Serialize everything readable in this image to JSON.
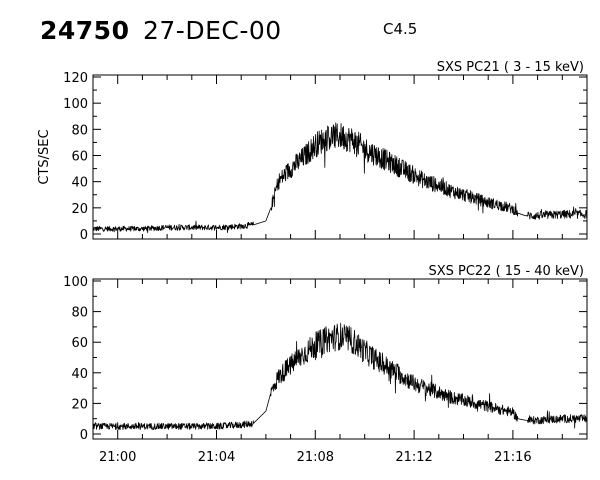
{
  "header": {
    "event_id": "24750",
    "date": "27-DEC-00",
    "flare_class": "C4.5"
  },
  "chart_data": [
    {
      "type": "line",
      "title": "SXS PC21  (  3 - 15 keV)",
      "xlabel": "",
      "ylabel": "CTS/SEC",
      "xlim": [
        "20:59:00",
        "21:19:00"
      ],
      "ylim": [
        0,
        120
      ],
      "yticks": [
        0,
        20,
        40,
        60,
        80,
        100,
        120
      ],
      "xticks": [
        "21:00",
        "21:04",
        "21:08",
        "21:12",
        "21:16"
      ],
      "grid": false,
      "series": [
        {
          "time": [
            "20:59:00",
            "21:00:00",
            "21:01:00",
            "21:02:00",
            "21:03:00",
            "21:04:00",
            "21:05:00",
            "21:05:30",
            "21:06:00",
            "21:06:12",
            "21:06:30",
            "21:07:00",
            "21:07:30",
            "21:08:00",
            "21:08:30",
            "21:09:00",
            "21:09:30",
            "21:10:00",
            "21:10:30",
            "21:11:00",
            "21:11:30",
            "21:12:00",
            "21:12:30",
            "21:13:00",
            "21:13:30",
            "21:14:00",
            "21:14:30",
            "21:15:00",
            "21:15:30",
            "21:16:00",
            "21:16:12",
            "21:16:30",
            "21:17:00",
            "21:18:00",
            "21:19:00"
          ],
          "counts": [
            4,
            4,
            4,
            5,
            5,
            5,
            6,
            7,
            10,
            20,
            40,
            50,
            58,
            68,
            74,
            75,
            72,
            65,
            60,
            55,
            50,
            45,
            40,
            37,
            33,
            30,
            27,
            24,
            22,
            19,
            16,
            14,
            14,
            15,
            15
          ]
        }
      ]
    },
    {
      "type": "line",
      "title": "SXS PC22  ( 15 - 40 keV)",
      "xlabel": "",
      "ylabel": "",
      "xlim": [
        "20:59:00",
        "21:19:00"
      ],
      "ylim": [
        0,
        100
      ],
      "yticks": [
        0,
        20,
        40,
        60,
        80,
        100
      ],
      "xticks": [
        "21:00",
        "21:04",
        "21:08",
        "21:12",
        "21:16"
      ],
      "grid": false,
      "series": [
        {
          "time": [
            "20:59:00",
            "21:00:00",
            "21:01:00",
            "21:02:00",
            "21:03:00",
            "21:04:00",
            "21:05:00",
            "21:05:30",
            "21:06:00",
            "21:06:12",
            "21:06:30",
            "21:07:00",
            "21:07:30",
            "21:08:00",
            "21:08:30",
            "21:09:00",
            "21:09:30",
            "21:10:00",
            "21:10:30",
            "21:11:00",
            "21:11:30",
            "21:12:00",
            "21:12:30",
            "21:13:00",
            "21:13:30",
            "21:14:00",
            "21:14:30",
            "21:15:00",
            "21:15:30",
            "21:16:00",
            "21:16:12",
            "21:16:30",
            "21:17:00",
            "21:18:00",
            "21:19:00"
          ],
          "counts": [
            5,
            5,
            5,
            5,
            5,
            5,
            6,
            7,
            15,
            27,
            37,
            45,
            52,
            58,
            62,
            64,
            61,
            54,
            48,
            43,
            38,
            33,
            30,
            27,
            24,
            22,
            20,
            18,
            16,
            14,
            10,
            9,
            9,
            10,
            10
          ]
        }
      ]
    }
  ]
}
